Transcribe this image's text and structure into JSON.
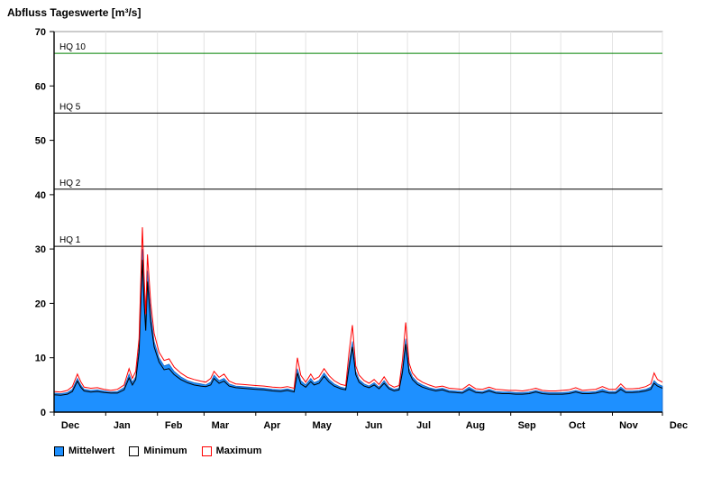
{
  "chart_data": {
    "type": "area",
    "title": "Abfluss Tageswerte [m³/s]",
    "ylabel": "",
    "xlabel": "",
    "ylim": [
      0,
      70
    ],
    "yticks": [
      0,
      10,
      20,
      30,
      40,
      50,
      60,
      70
    ],
    "xmax": 365,
    "x_unit": "days from Dec 1",
    "grid": "vertical month gridlines, no horizontal gridlines",
    "legend_position": "bottom-left",
    "month_labels": [
      "Dec",
      "Jan",
      "Feb",
      "Mar",
      "Apr",
      "May",
      "Jun",
      "Jul",
      "Aug",
      "Sep",
      "Oct",
      "Nov",
      "Dec"
    ],
    "month_boundaries": [
      0,
      31,
      62,
      90,
      121,
      151,
      182,
      212,
      243,
      274,
      304,
      335,
      365
    ],
    "reference_lines": [
      {
        "label": "HQ 10",
        "value": 66,
        "color": "#008000"
      },
      {
        "label": "HQ 5",
        "value": 55,
        "color": "#000000"
      },
      {
        "label": "HQ 2",
        "value": 41,
        "color": "#000000"
      },
      {
        "label": "HQ 1",
        "value": 30.5,
        "color": "#000000"
      }
    ],
    "series": [
      {
        "name": "Mittelwert",
        "type": "area",
        "line_color": "#1565c8",
        "fill_color": "#1E90FF",
        "swatch_fill": "#1E90FF",
        "swatch_border": "#000000"
      },
      {
        "name": "Minimum",
        "type": "line",
        "line_color": "#000000",
        "swatch_fill": "#ffffff",
        "swatch_border": "#000000"
      },
      {
        "name": "Maximum",
        "type": "line",
        "line_color": "#FF0000",
        "swatch_fill": "#ffffff",
        "swatch_border": "#FF0000"
      }
    ],
    "point_format": [
      "day",
      "min",
      "mean",
      "max"
    ],
    "points": [
      [
        0,
        3.2,
        3.5,
        3.8
      ],
      [
        4,
        3.1,
        3.4,
        3.7
      ],
      [
        8,
        3.3,
        3.6,
        4.0
      ],
      [
        11,
        3.8,
        4.2,
        4.7
      ],
      [
        14,
        5.7,
        6.2,
        7.0
      ],
      [
        16,
        4.6,
        5.0,
        5.6
      ],
      [
        18,
        3.9,
        4.2,
        4.6
      ],
      [
        22,
        3.7,
        4.0,
        4.4
      ],
      [
        26,
        3.8,
        4.1,
        4.5
      ],
      [
        30,
        3.6,
        3.9,
        4.2
      ],
      [
        34,
        3.5,
        3.7,
        4.0
      ],
      [
        38,
        3.5,
        3.8,
        4.2
      ],
      [
        42,
        4.1,
        4.5,
        5.0
      ],
      [
        45,
        6.3,
        7.0,
        8.0
      ],
      [
        47,
        5.0,
        5.5,
        6.2
      ],
      [
        49,
        6.0,
        6.5,
        7.5
      ],
      [
        51,
        11.0,
        12.0,
        13.5
      ],
      [
        53,
        28.0,
        30.0,
        34.0
      ],
      [
        54,
        20.0,
        22.0,
        25.0
      ],
      [
        55,
        15.0,
        16.0,
        18.0
      ],
      [
        56,
        24.0,
        26.0,
        29.0
      ],
      [
        58,
        16.5,
        18.0,
        20.0
      ],
      [
        60,
        12.0,
        13.0,
        14.5
      ],
      [
        63,
        9.2,
        10.0,
        11.0
      ],
      [
        66,
        7.8,
        8.5,
        9.5
      ],
      [
        69,
        8.0,
        8.8,
        9.8
      ],
      [
        72,
        6.9,
        7.5,
        8.3
      ],
      [
        76,
        6.0,
        6.5,
        7.2
      ],
      [
        80,
        5.4,
        5.8,
        6.4
      ],
      [
        84,
        5.0,
        5.4,
        6.0
      ],
      [
        88,
        4.8,
        5.2,
        5.7
      ],
      [
        91,
        4.7,
        5.0,
        5.5
      ],
      [
        94,
        5.0,
        5.5,
        6.2
      ],
      [
        96,
        6.2,
        6.8,
        7.5
      ],
      [
        99,
        5.3,
        5.8,
        6.4
      ],
      [
        102,
        5.7,
        6.2,
        7.0
      ],
      [
        105,
        4.8,
        5.2,
        5.7
      ],
      [
        109,
        4.5,
        4.8,
        5.2
      ],
      [
        113,
        4.4,
        4.7,
        5.1
      ],
      [
        117,
        4.3,
        4.6,
        5.0
      ],
      [
        121,
        4.2,
        4.5,
        4.9
      ],
      [
        126,
        4.1,
        4.4,
        4.8
      ],
      [
        131,
        3.9,
        4.2,
        4.6
      ],
      [
        136,
        3.8,
        4.1,
        4.5
      ],
      [
        140,
        4.0,
        4.3,
        4.7
      ],
      [
        144,
        3.7,
        4.0,
        4.4
      ],
      [
        146,
        7.2,
        8.0,
        10.0
      ],
      [
        148,
        5.2,
        5.8,
        6.8
      ],
      [
        151,
        4.6,
        5.0,
        5.5
      ],
      [
        154,
        5.6,
        6.2,
        7.0
      ],
      [
        156,
        5.0,
        5.4,
        6.0
      ],
      [
        159,
        5.3,
        5.8,
        6.5
      ],
      [
        162,
        6.6,
        7.2,
        8.0
      ],
      [
        165,
        5.5,
        6.0,
        6.7
      ],
      [
        168,
        4.8,
        5.2,
        5.8
      ],
      [
        172,
        4.3,
        4.6,
        5.1
      ],
      [
        175,
        4.1,
        4.4,
        4.9
      ],
      [
        177,
        8.2,
        9.0,
        11.0
      ],
      [
        179,
        12.0,
        13.0,
        16.0
      ],
      [
        181,
        6.9,
        7.5,
        8.5
      ],
      [
        183,
        5.5,
        6.0,
        6.8
      ],
      [
        186,
        4.8,
        5.2,
        5.8
      ],
      [
        189,
        4.5,
        4.8,
        5.3
      ],
      [
        192,
        5.0,
        5.4,
        6.0
      ],
      [
        195,
        4.3,
        4.6,
        5.1
      ],
      [
        198,
        5.3,
        5.8,
        6.5
      ],
      [
        201,
        4.3,
        4.6,
        5.1
      ],
      [
        204,
        3.9,
        4.2,
        4.6
      ],
      [
        207,
        4.1,
        4.4,
        4.9
      ],
      [
        209,
        7.3,
        8.0,
        9.5
      ],
      [
        211,
        12.5,
        13.5,
        16.5
      ],
      [
        213,
        7.3,
        8.0,
        9.0
      ],
      [
        215,
        6.0,
        6.5,
        7.2
      ],
      [
        218,
        5.1,
        5.5,
        6.1
      ],
      [
        221,
        4.6,
        5.0,
        5.5
      ],
      [
        225,
        4.2,
        4.5,
        5.0
      ],
      [
        229,
        3.9,
        4.2,
        4.6
      ],
      [
        233,
        4.1,
        4.4,
        4.8
      ],
      [
        237,
        3.7,
        4.0,
        4.4
      ],
      [
        241,
        3.6,
        3.9,
        4.3
      ],
      [
        245,
        3.5,
        3.8,
        4.2
      ],
      [
        249,
        4.2,
        4.6,
        5.1
      ],
      [
        253,
        3.6,
        3.9,
        4.3
      ],
      [
        257,
        3.5,
        3.8,
        4.2
      ],
      [
        261,
        3.9,
        4.2,
        4.6
      ],
      [
        265,
        3.5,
        3.8,
        4.2
      ],
      [
        269,
        3.4,
        3.7,
        4.1
      ],
      [
        273,
        3.4,
        3.7,
        4.0
      ],
      [
        277,
        3.3,
        3.6,
        4.0
      ],
      [
        281,
        3.3,
        3.6,
        3.9
      ],
      [
        285,
        3.4,
        3.7,
        4.1
      ],
      [
        289,
        3.7,
        4.0,
        4.4
      ],
      [
        293,
        3.4,
        3.7,
        4.0
      ],
      [
        297,
        3.3,
        3.6,
        3.9
      ],
      [
        301,
        3.3,
        3.6,
        3.9
      ],
      [
        305,
        3.3,
        3.6,
        4.0
      ],
      [
        309,
        3.4,
        3.7,
        4.1
      ],
      [
        313,
        3.7,
        4.0,
        4.5
      ],
      [
        317,
        3.4,
        3.7,
        4.0
      ],
      [
        321,
        3.4,
        3.7,
        4.1
      ],
      [
        325,
        3.5,
        3.8,
        4.2
      ],
      [
        329,
        3.8,
        4.2,
        4.7
      ],
      [
        333,
        3.5,
        3.8,
        4.2
      ],
      [
        337,
        3.5,
        3.8,
        4.2
      ],
      [
        340,
        4.2,
        4.6,
        5.2
      ],
      [
        343,
        3.6,
        3.9,
        4.3
      ],
      [
        347,
        3.6,
        3.9,
        4.3
      ],
      [
        351,
        3.7,
        4.0,
        4.4
      ],
      [
        355,
        3.9,
        4.2,
        4.7
      ],
      [
        358,
        4.2,
        4.6,
        5.2
      ],
      [
        360,
        5.3,
        5.8,
        7.2
      ],
      [
        362,
        4.8,
        5.2,
        6.0
      ],
      [
        365,
        4.4,
        4.8,
        5.5
      ]
    ]
  },
  "legend": {
    "items": [
      {
        "label": "Mittelwert"
      },
      {
        "label": "Minimum"
      },
      {
        "label": "Maximum"
      }
    ]
  }
}
